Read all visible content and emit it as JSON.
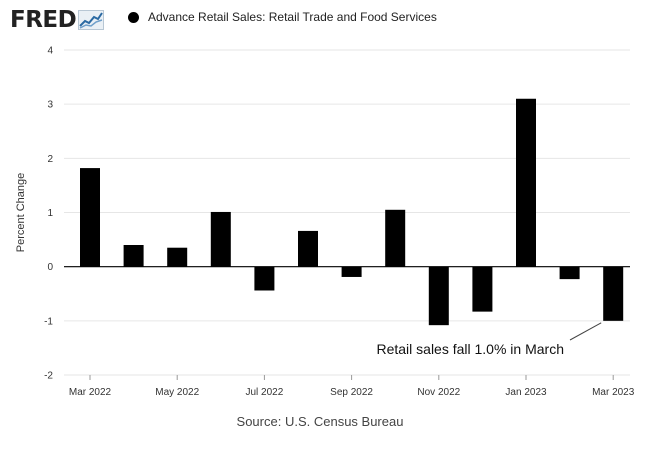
{
  "header": {
    "logo_text": "FRED",
    "legend_label": "Advance Retail Sales: Retail Trade and Food Services"
  },
  "colors": {
    "bar": "#000000",
    "grid": "#e6e6e6",
    "zero_line": "#000000"
  },
  "source": "Source: U.S. Census Bureau",
  "chart_data": {
    "type": "bar",
    "series": [
      {
        "name": "Advance Retail Sales: Retail Trade and Food Services",
        "values": [
          1.82,
          0.4,
          0.35,
          1.01,
          -0.44,
          0.66,
          -0.19,
          1.05,
          -1.08,
          -0.83,
          3.1,
          -0.23,
          -1.0
        ]
      }
    ],
    "categories": [
      "Mar 2022",
      "Apr 2022",
      "May 2022",
      "Jun 2022",
      "Jul 2022",
      "Aug 2022",
      "Sep 2022",
      "Oct 2022",
      "Nov 2022",
      "Dec 2022",
      "Jan 2023",
      "Feb 2023",
      "Mar 2023"
    ],
    "x_tick_labels": [
      "Mar 2022",
      "May 2022",
      "Jul 2022",
      "Sep 2022",
      "Nov 2022",
      "Jan 2023",
      "Mar 2023"
    ],
    "y_ticks": [
      -2,
      -1,
      0,
      1,
      2,
      3,
      4
    ],
    "ylim": [
      -2,
      4
    ],
    "ylabel": "Percent Change",
    "xlabel": "",
    "grid": true,
    "annotation": {
      "text": "Retail sales fall 1.0% in March",
      "category": "Mar 2023",
      "value": -1.0
    }
  }
}
